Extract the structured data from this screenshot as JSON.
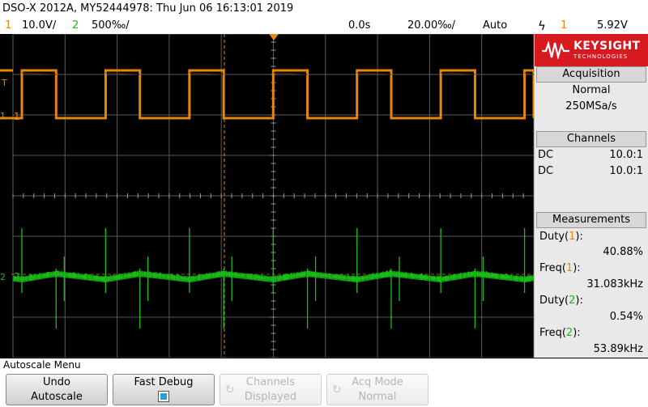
{
  "header": {
    "model_info": "DSO-X 2012A, MY52444978: Thu Jun 06 16:13:01 2019",
    "ch1_num": "1",
    "ch1_scale": "10.0V/",
    "ch2_num": "2",
    "ch2_scale": "500‰/",
    "time_delay": "0.0s",
    "time_scale": "20.00‰/",
    "trigger_mode": "Auto",
    "trigger_slope_icon": "ϟ",
    "trigger_channel": "1",
    "trigger_level": "5.92V"
  },
  "markers": {
    "trigger_level": "T",
    "ch1_ground": "1",
    "ch1_ref": "1",
    "ch2_ground": "2",
    "ch2_ref": "2"
  },
  "colors": {
    "ch1": "#e8860c",
    "ch2": "#1db31d",
    "brand": "#d71920"
  },
  "brand": {
    "name": "KEYSIGHT",
    "sub": "TECHNOLOGIES"
  },
  "acquisition": {
    "title": "Acquisition",
    "mode": "Normal",
    "rate": "250MSa/s"
  },
  "channels": {
    "title": "Channels",
    "ch1_coupling": "DC",
    "ch1_probe": "10.0:1",
    "ch2_coupling": "DC",
    "ch2_probe": "10.0:1"
  },
  "measurements": {
    "title": "Measurements",
    "items": [
      {
        "label": "Duty(",
        "ch": "1",
        "close": "):",
        "value": "40.88%"
      },
      {
        "label": "Freq(",
        "ch": "1",
        "close": "):",
        "value": "31.083kHz"
      },
      {
        "label": "Duty(",
        "ch": "2",
        "close": "):",
        "value": "0.54%"
      },
      {
        "label": "Freq(",
        "ch": "2",
        "close": "):",
        "value": "53.89kHz"
      }
    ]
  },
  "menu": {
    "title": "Autoscale Menu",
    "keys": [
      {
        "line1": "Undo",
        "line2": "Autoscale"
      },
      {
        "line1": "Fast Debug"
      },
      {
        "line1": "Channels",
        "line2": "Displayed"
      },
      {
        "line1": "Acq Mode",
        "line2": "Normal"
      }
    ]
  },
  "waveform": {
    "ch1": {
      "frequency_khz": 31.083,
      "duty": 0.4088
    },
    "ch2": {
      "frequency_khz": 53.89,
      "duty": 0.0054
    }
  }
}
